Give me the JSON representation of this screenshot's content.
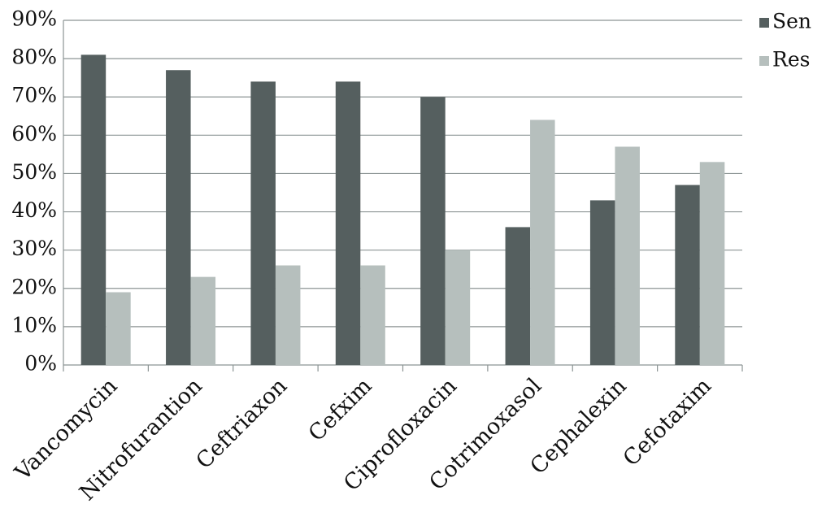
{
  "chart_data": {
    "type": "bar",
    "categories": [
      "Vancomycin",
      "Nitrofurantion",
      "Ceftriaxon",
      "Cefxim",
      "Ciprofloxacin",
      "Cotrimoxasol",
      "Cephalexin",
      "Cefotaxim"
    ],
    "series": [
      {
        "name": "Sen",
        "color": "#555f5f",
        "values": [
          81,
          77,
          74,
          74,
          70,
          36,
          43,
          47
        ]
      },
      {
        "name": "Res",
        "color": "#b6bfbd",
        "values": [
          19,
          23,
          26,
          26,
          30,
          64,
          57,
          53
        ]
      }
    ],
    "ylim": [
      0,
      90
    ],
    "yticks": [
      {
        "value": 0,
        "label": "0%"
      },
      {
        "value": 10,
        "label": "10%"
      },
      {
        "value": 20,
        "label": "20%"
      },
      {
        "value": 30,
        "label": "30%"
      },
      {
        "value": 40,
        "label": "40%"
      },
      {
        "value": 50,
        "label": "50%"
      },
      {
        "value": 60,
        "label": "60%"
      },
      {
        "value": 70,
        "label": "70%"
      },
      {
        "value": 80,
        "label": "80%"
      },
      {
        "value": 90,
        "label": "90%"
      }
    ],
    "grid": true,
    "legend": "right"
  }
}
